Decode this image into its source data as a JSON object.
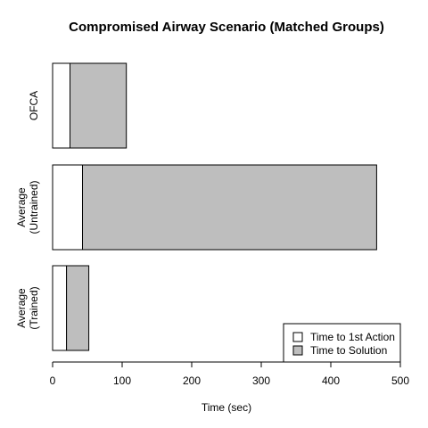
{
  "chart_data": {
    "type": "bar",
    "orientation": "horizontal",
    "stacked": true,
    "title": "Compromised Airway Scenario (Matched Groups)",
    "xlabel": "Time (sec)",
    "ylabel": "",
    "xlim": [
      0,
      500
    ],
    "xticks": [
      0,
      100,
      200,
      300,
      400,
      500
    ],
    "categories": [
      [
        "Average",
        "(Trained)"
      ],
      [
        "Average",
        "(Untrained)"
      ],
      [
        "OFCA"
      ]
    ],
    "series": [
      {
        "name": "Time to 1st Action",
        "color": "#ffffff",
        "values": [
          20,
          43,
          25
        ]
      },
      {
        "name": "Time to Solution",
        "color": "#bebebe",
        "values": [
          32,
          423,
          81
        ]
      }
    ],
    "legend_position": "bottom-right",
    "grid": false
  }
}
